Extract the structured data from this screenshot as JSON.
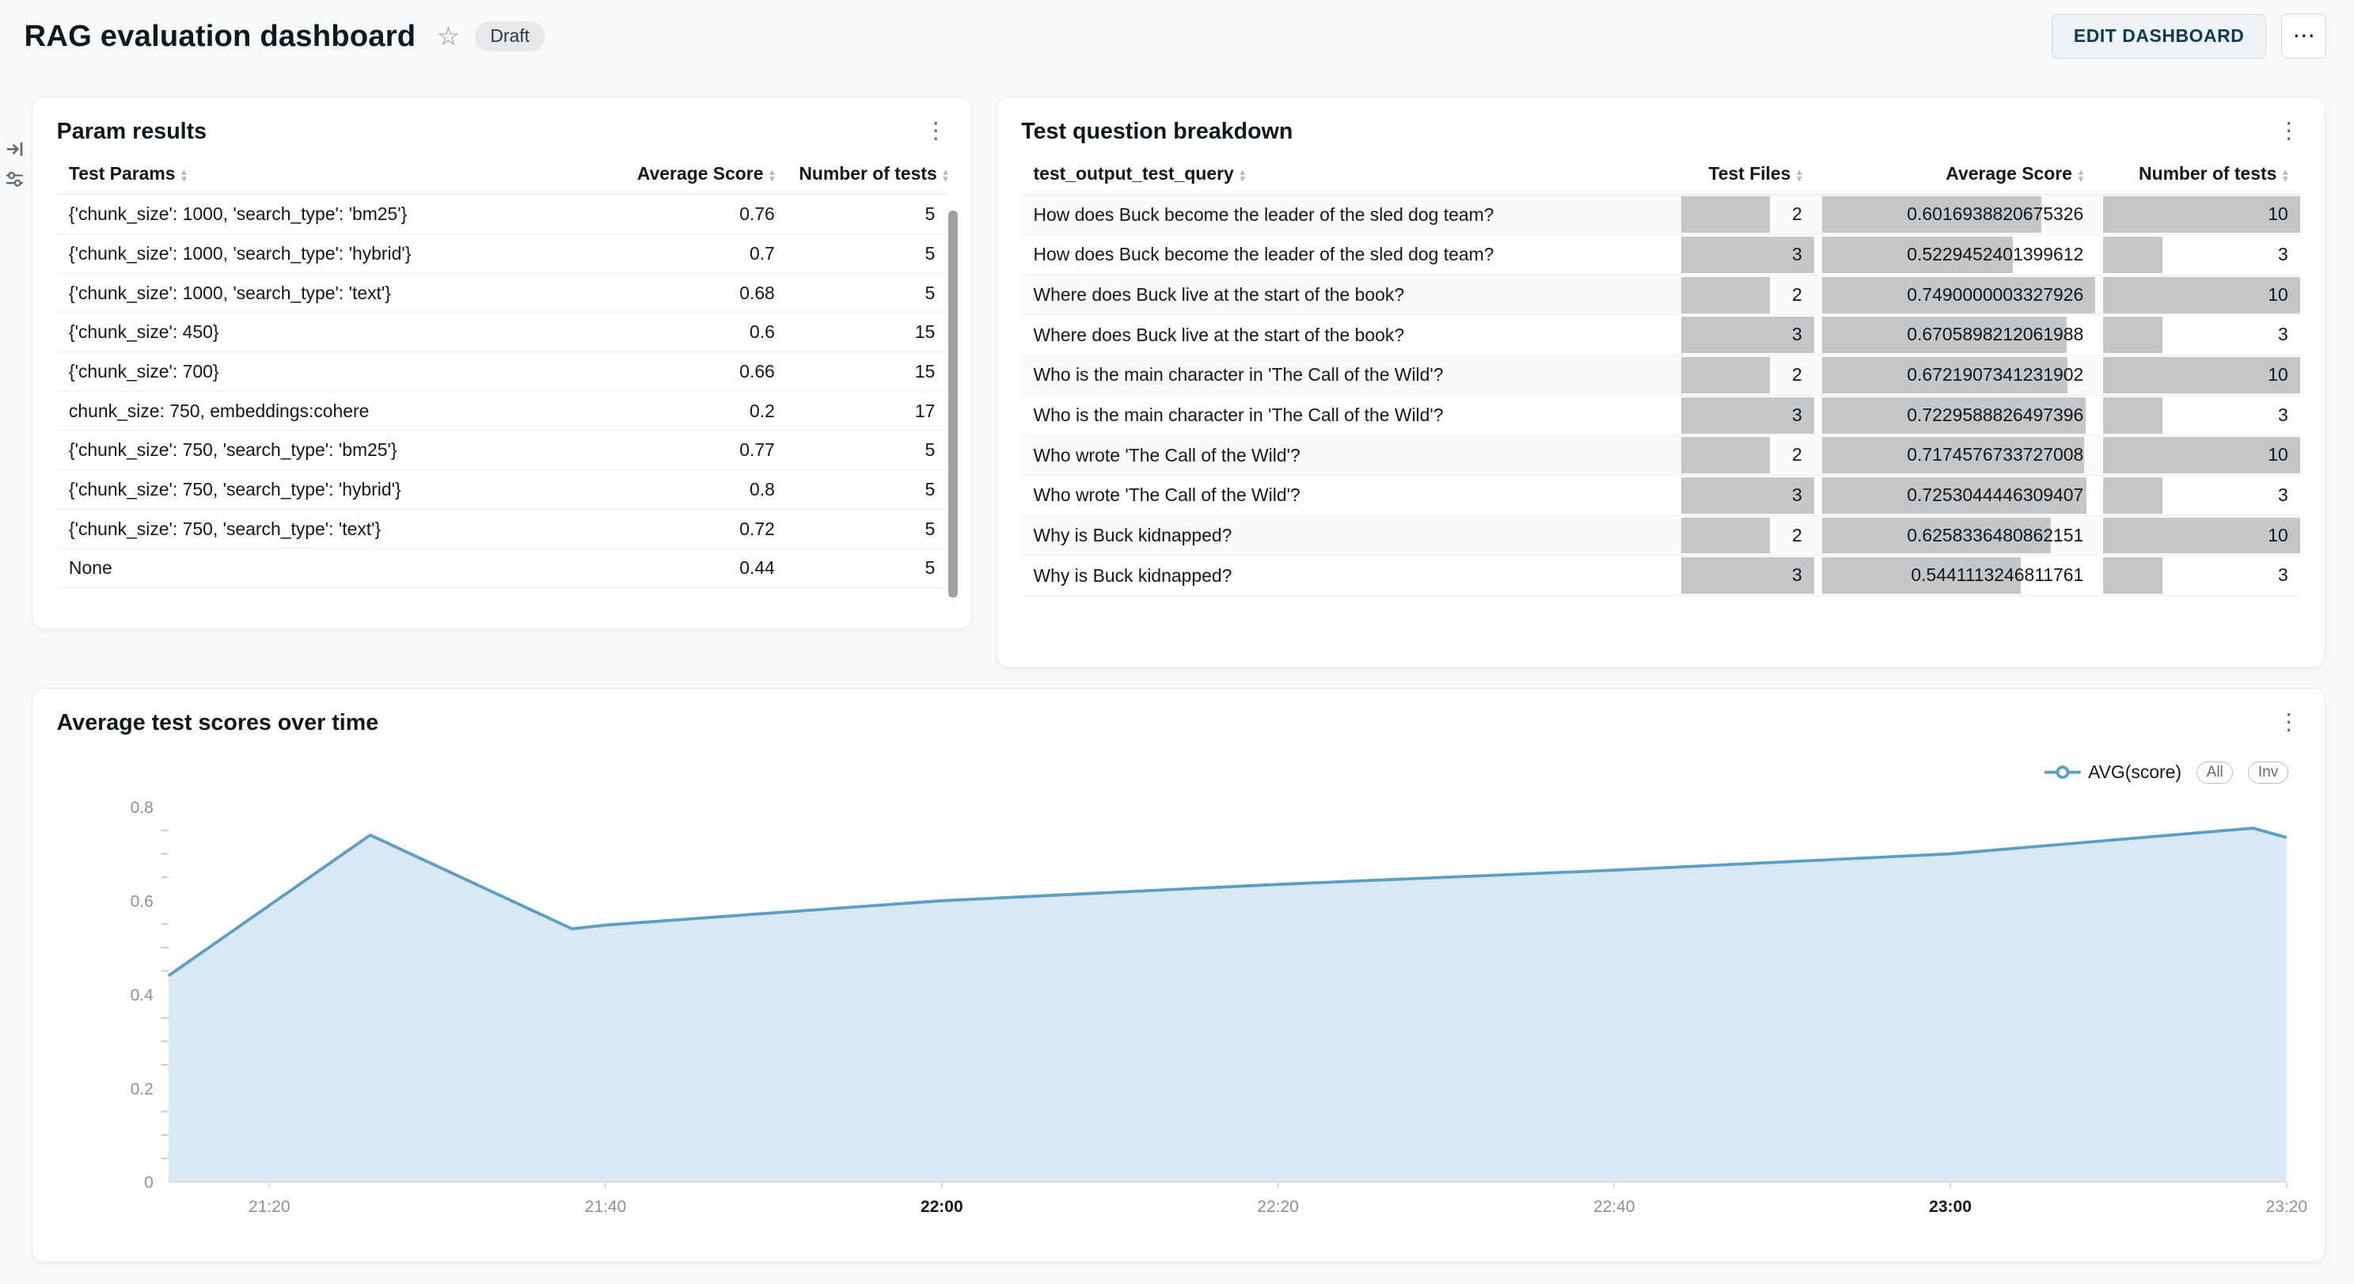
{
  "header": {
    "title": "RAG evaluation dashboard",
    "status_badge": "Draft",
    "edit_button": "EDIT DASHBOARD"
  },
  "icons": {
    "star": "☆",
    "kebab": "⋮",
    "more": "⋯"
  },
  "panels": {
    "param_results": {
      "title": "Param results",
      "columns": [
        "Test Params",
        "Average Score",
        "Number of tests"
      ],
      "rows": [
        [
          "{'chunk_size': 1000, 'search_type': 'bm25'}",
          "0.76",
          "5"
        ],
        [
          "{'chunk_size': 1000, 'search_type': 'hybrid'}",
          "0.7",
          "5"
        ],
        [
          "{'chunk_size': 1000, 'search_type': 'text'}",
          "0.68",
          "5"
        ],
        [
          "{'chunk_size': 450}",
          "0.6",
          "15"
        ],
        [
          "{'chunk_size': 700}",
          "0.66",
          "15"
        ],
        [
          "chunk_size: 750, embeddings:cohere",
          "0.2",
          "17"
        ],
        [
          "{'chunk_size': 750, 'search_type': 'bm25'}",
          "0.77",
          "5"
        ],
        [
          "{'chunk_size': 750, 'search_type': 'hybrid'}",
          "0.8",
          "5"
        ],
        [
          "{'chunk_size': 750, 'search_type': 'text'}",
          "0.72",
          "5"
        ],
        [
          "None",
          "0.44",
          "5"
        ]
      ]
    },
    "question_breakdown": {
      "title": "Test question breakdown",
      "columns": [
        "test_output_test_query",
        "Test Files",
        "Average Score",
        "Number of tests"
      ],
      "rows": [
        [
          "How does Buck become the leader of the sled dog team?",
          "2",
          "0.6016938820675326",
          "10"
        ],
        [
          "How does Buck become the leader of the sled dog team?",
          "3",
          "0.5229452401399612",
          "3"
        ],
        [
          "Where does Buck live at the start of the book?",
          "2",
          "0.7490000003327926",
          "10"
        ],
        [
          "Where does Buck live at the start of the book?",
          "3",
          "0.6705898212061988",
          "3"
        ],
        [
          "Who is the main character in 'The Call of the Wild'?",
          "2",
          "0.6721907341231902",
          "10"
        ],
        [
          "Who is the main character in 'The Call of the Wild'?",
          "3",
          "0.7229588826497396",
          "3"
        ],
        [
          "Who wrote 'The Call of the Wild'?",
          "2",
          "0.7174576733727008",
          "10"
        ],
        [
          "Who wrote 'The Call of the Wild'?",
          "3",
          "0.7253044446309407",
          "3"
        ],
        [
          "Why is Buck kidnapped?",
          "2",
          "0.6258336480862151",
          "10"
        ],
        [
          "Why is Buck kidnapped?",
          "3",
          "0.5441113246811761",
          "3"
        ]
      ]
    },
    "chart": {
      "title": "Average test scores over time",
      "legend_series": "AVG(score)",
      "legend_all": "All",
      "legend_inv": "Inv"
    }
  },
  "chart_data": {
    "type": "area",
    "title": "Average test scores over time",
    "series": [
      {
        "name": "AVG(score)",
        "x": [
          "21:14",
          "21:26",
          "21:38",
          "21:40",
          "22:00",
          "22:20",
          "22:40",
          "23:00",
          "23:18",
          "23:20"
        ],
        "values": [
          0.44,
          0.74,
          0.54,
          0.548,
          0.6,
          0.635,
          0.665,
          0.7,
          0.755,
          0.735
        ]
      }
    ],
    "xticks": [
      "21:20",
      "21:40",
      "22:00",
      "22:20",
      "22:40",
      "23:00",
      "23:20"
    ],
    "bold_xticks": [
      "22:00",
      "23:00"
    ],
    "yticks": [
      0,
      0.2,
      0.4,
      0.6,
      0.8
    ],
    "ylim": [
      0,
      0.8
    ],
    "x_range": [
      "21:14",
      "23:20"
    ],
    "grid": false,
    "legend_position": "top-right",
    "colors": {
      "line": "#5b9fc4",
      "fill": "#d9e8f2"
    }
  }
}
